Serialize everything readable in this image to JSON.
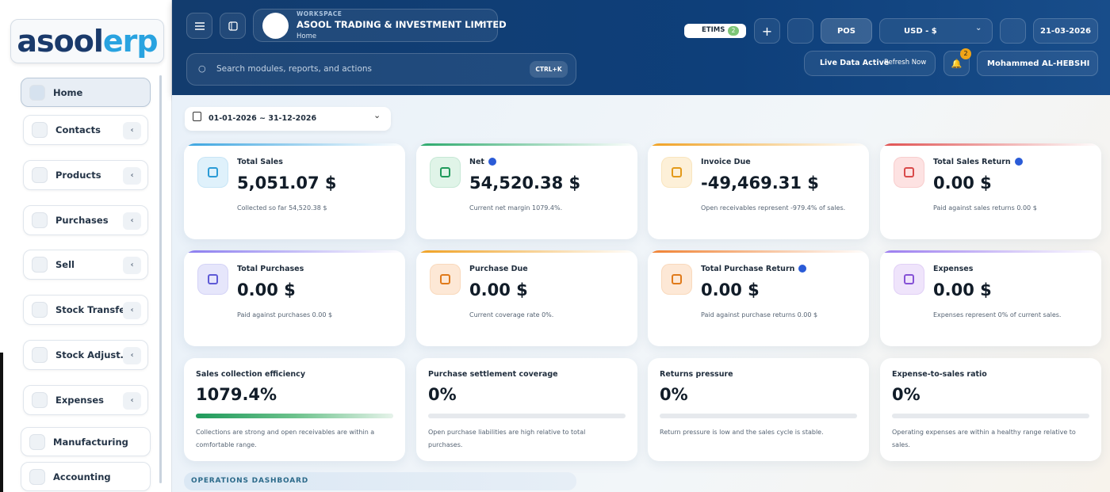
{
  "sidebar": {
    "logo": {
      "left": "asool",
      "right": "erp"
    },
    "menu": [
      "Home",
      "Contacts",
      "Products",
      "Purchases",
      "Sell",
      "Stock Transfers",
      "Stock Adjust…",
      "Expenses",
      "Manufacturing",
      "Accounting"
    ]
  },
  "header": {
    "workspace_label": "WORKSPACE",
    "company": "ASOOL TRADING & INVESTMENT LIMITED",
    "page": "Home",
    "etims": "ETIMS",
    "etims_count": 2,
    "pos": "POS",
    "currency": "USD - $",
    "date": "21-03-2026",
    "search_placeholder": "Search modules, reports, and actions",
    "shortcut": "CTRL+K",
    "live_status": "Live Data Active",
    "refresh": "Refresh Now",
    "notifications": 2,
    "user": "Mohammed AL-HEBSHI"
  },
  "filters": {
    "date_range": "01-01-2026 ~ 31-12-2026"
  },
  "stat_cards": [
    {
      "title": "Total Sales",
      "value": "5,051.07 $",
      "note": "Collected so far 54,520.38 $"
    },
    {
      "title": "Net",
      "value": "54,520.38 $",
      "note": "Current net margin 1079.4%."
    },
    {
      "title": "Invoice Due",
      "value": "-49,469.31 $",
      "note": "Open receivables represent -979.4% of sales."
    },
    {
      "title": "Total Sales Return",
      "value": "0.00 $",
      "note": "Paid against sales returns 0.00 $"
    },
    {
      "title": "Total Purchases",
      "value": "0.00 $",
      "note": "Paid against purchases 0.00 $"
    },
    {
      "title": "Purchase Due",
      "value": "0.00 $",
      "note": "Current coverage rate 0%."
    },
    {
      "title": "Total Purchase Return",
      "value": "0.00 $",
      "note": "Paid against purchase returns 0.00 $"
    },
    {
      "title": "Expenses",
      "value": "0.00 $",
      "note": "Expenses represent 0% of current sales."
    }
  ],
  "metric_cards": [
    {
      "title": "Sales collection efficiency",
      "value": "1079.4%",
      "note": "Collections are strong and open receivables are within a comfortable range."
    },
    {
      "title": "Purchase settlement coverage",
      "value": "0%",
      "note": "Open purchase liabilities are high relative to total purchases."
    },
    {
      "title": "Returns pressure",
      "value": "0%",
      "note": "Return pressure is low and the sales cycle is stable."
    },
    {
      "title": "Expense-to-sales ratio",
      "value": "0%",
      "note": "Operating expenses are within a healthy range relative to sales."
    }
  ],
  "section": "OPERATIONS DASHBOARD"
}
